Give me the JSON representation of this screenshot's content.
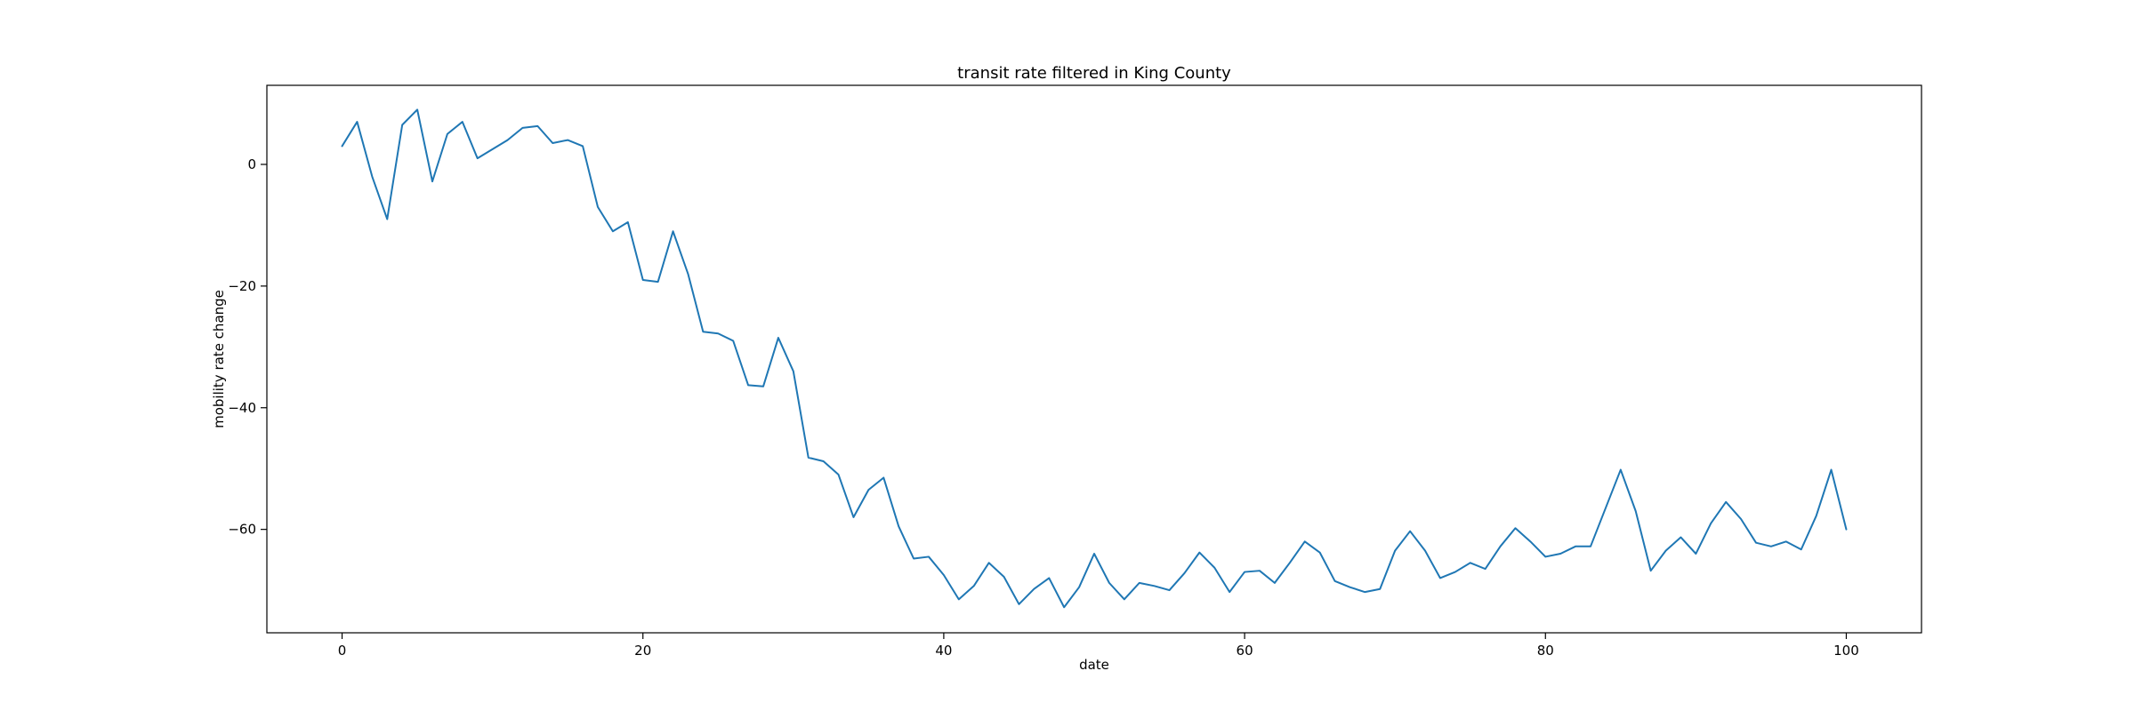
{
  "chart_data": {
    "type": "line",
    "title": "transit rate filtered in King County",
    "xlabel": "date",
    "ylabel": "mobility rate change",
    "xlim": [
      -5,
      105
    ],
    "ylim": [
      -77,
      13
    ],
    "xticks": [
      0,
      20,
      40,
      60,
      80,
      100
    ],
    "yticks": [
      0,
      -20,
      -40,
      -60
    ],
    "grid": false,
    "series": [
      {
        "color": "#1f77b4",
        "x": [
          0,
          1,
          2,
          3,
          4,
          5,
          6,
          7,
          8,
          9,
          10,
          11,
          12,
          13,
          14,
          15,
          16,
          17,
          18,
          19,
          20,
          21,
          22,
          23,
          24,
          25,
          26,
          27,
          28,
          29,
          30,
          31,
          32,
          33,
          34,
          35,
          36,
          37,
          38,
          39,
          40,
          41,
          42,
          43,
          44,
          45,
          46,
          47,
          48,
          49,
          50,
          51,
          52,
          53,
          54,
          55,
          56,
          57,
          58,
          59,
          60,
          61,
          62,
          63,
          64,
          65,
          66,
          67,
          68,
          69,
          70,
          71,
          72,
          73,
          74,
          75,
          76,
          77,
          78,
          79,
          80,
          81,
          82,
          83,
          84,
          85,
          86,
          87,
          88,
          89,
          90,
          91,
          92,
          93,
          94,
          95,
          96,
          97,
          98,
          99,
          100
        ],
        "y": [
          3,
          7,
          -2,
          -9,
          6.5,
          9,
          -2.8,
          5,
          7,
          1,
          2.5,
          4,
          6,
          6.3,
          3.5,
          4,
          3,
          -7,
          -11,
          -9.5,
          -19,
          -19.3,
          -11,
          -18,
          -27.5,
          -27.8,
          -29,
          -36.3,
          -36.5,
          -28.5,
          -34,
          -48.2,
          -48.8,
          -51,
          -58,
          -53.5,
          -51.5,
          -59.5,
          -64.8,
          -64.5,
          -67.5,
          -71.5,
          -69.3,
          -65.5,
          -67.8,
          -72.3,
          -69.8,
          -68,
          -72.8,
          -69.5,
          -64,
          -68.8,
          -71.5,
          -68.8,
          -69.3,
          -70,
          -67.2,
          -63.8,
          -66.3,
          -70.3,
          -67,
          -66.8,
          -68.8,
          -65.5,
          -62,
          -63.8,
          -68.5,
          -69.5,
          -70.3,
          -69.8,
          -63.5,
          -60.3,
          -63.5,
          -68,
          -67,
          -65.5,
          -66.5,
          -62.8,
          -59.8,
          -62,
          -64.5,
          -64,
          -62.8,
          -62.8,
          -56.5,
          -50.2,
          -57,
          -66.8,
          -63.5,
          -61.3,
          -64,
          -59,
          -55.5,
          -58.3,
          -62.2,
          -62.8,
          -62,
          -63.3,
          -57.8,
          -50.2,
          -60
        ]
      }
    ]
  }
}
